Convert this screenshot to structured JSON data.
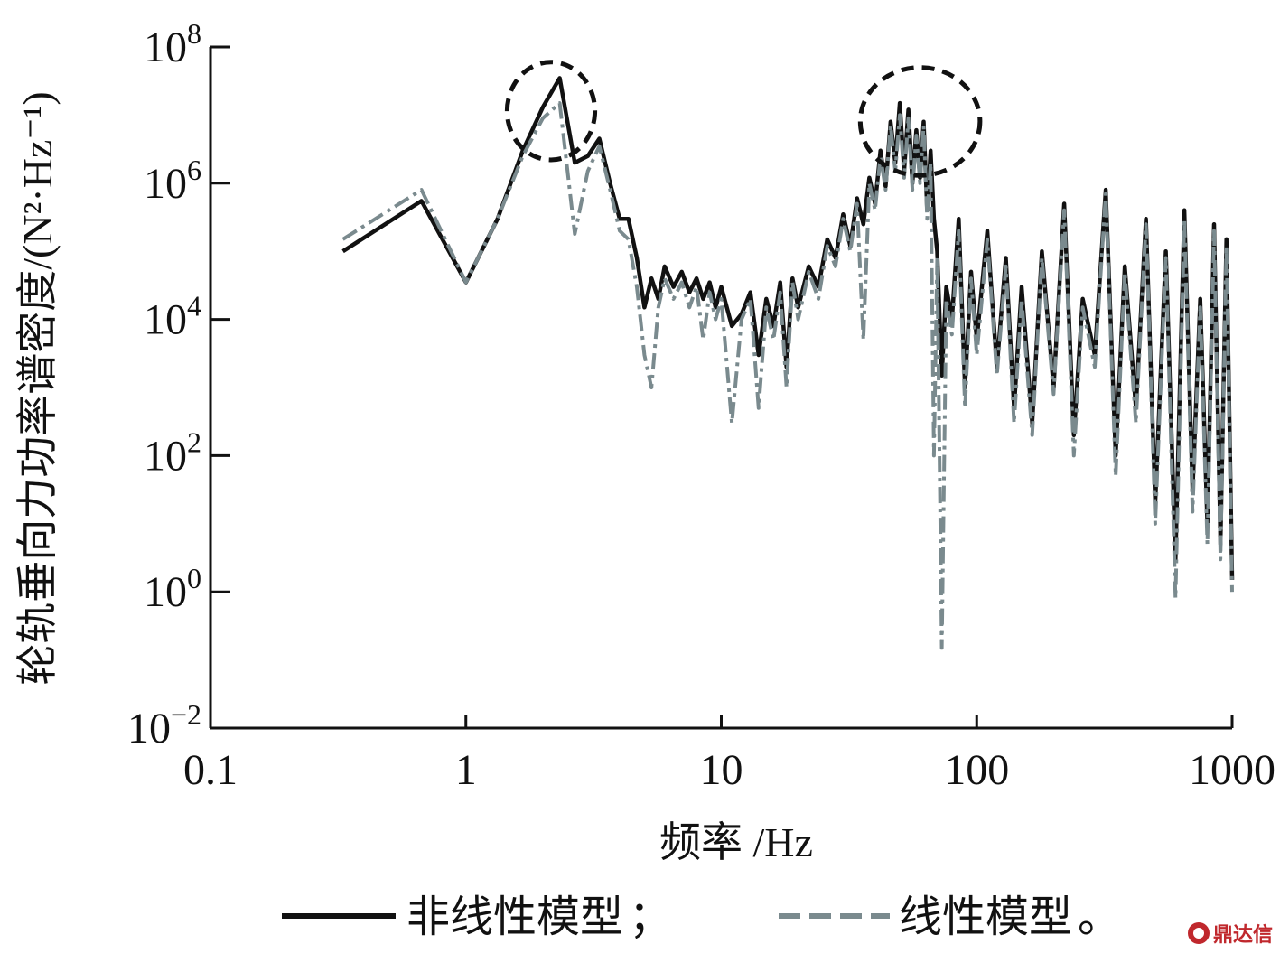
{
  "chart_data": {
    "type": "line",
    "xscale": "log",
    "yscale": "log",
    "xlim": [
      0.1,
      1000
    ],
    "ylim": [
      0.01,
      100000000
    ],
    "xlabel": "频率 /Hz",
    "ylabel": "轮轨垂向力功率谱密度/(N²·Hz⁻¹)",
    "x_ticks": [
      {
        "value": 0.1,
        "label": "0.1"
      },
      {
        "value": 1,
        "label": "1"
      },
      {
        "value": 10,
        "label": "10"
      },
      {
        "value": 100,
        "label": "100"
      },
      {
        "value": 1000,
        "label": "1000"
      }
    ],
    "y_ticks": [
      {
        "value": 0.01,
        "base": "10",
        "exp": "−2"
      },
      {
        "value": 1,
        "base": "10",
        "exp": "0"
      },
      {
        "value": 100,
        "base": "10",
        "exp": "2"
      },
      {
        "value": 10000,
        "base": "10",
        "exp": "4"
      },
      {
        "value": 1000000,
        "base": "10",
        "exp": "6"
      },
      {
        "value": 100000000,
        "base": "10",
        "exp": "8"
      }
    ],
    "annotations": [
      {
        "type": "dashed-ellipse",
        "x_center": 2.15,
        "y_center": 11000000,
        "x_range": [
          1.45,
          3.2
        ],
        "y_range": [
          2200000,
          60000000
        ]
      },
      {
        "type": "dashed-ellipse",
        "x_center": 58,
        "y_center": 6000000,
        "x_range": [
          35,
          103
        ],
        "y_range": [
          1300000,
          50000000
        ]
      }
    ],
    "series": [
      {
        "name": "非线性模型",
        "color": "#111111",
        "style": "solid",
        "x": [
          0.33,
          0.67,
          1.0,
          1.33,
          1.67,
          2.0,
          2.33,
          2.67,
          3.0,
          3.33,
          3.67,
          4.0,
          4.33,
          4.67,
          5.0,
          5.33,
          5.67,
          6.0,
          6.5,
          7.0,
          7.5,
          8.0,
          8.5,
          9.0,
          9.5,
          10.0,
          11.0,
          12.0,
          13.0,
          14.0,
          15.0,
          16.0,
          17.0,
          18.0,
          19.0,
          20.0,
          22.0,
          24.0,
          26.0,
          28.0,
          30.0,
          32.0,
          34.0,
          36.0,
          38.0,
          40.0,
          42.0,
          44.0,
          46.0,
          48.0,
          50.0,
          52.0,
          54.0,
          56.0,
          58.0,
          60.0,
          62.0,
          64.0,
          66.0,
          68.0,
          70.0,
          73.0,
          76.0,
          80.0,
          85.0,
          90.0,
          95.0,
          100.0,
          110.0,
          120.0,
          130.0,
          140.0,
          150.0,
          165.0,
          180.0,
          200.0,
          220.0,
          240.0,
          260.0,
          290.0,
          320.0,
          350.0,
          380.0,
          420.0,
          460.0,
          500.0,
          550.0,
          600.0,
          650.0,
          700.0,
          750.0,
          800.0,
          850.0,
          900.0,
          950.0,
          1000.0
        ],
        "y": [
          100000,
          550000,
          35000,
          300000,
          3000000,
          13000000,
          35000000,
          2000000,
          2500000,
          4500000,
          1000000,
          300000,
          300000,
          80000,
          15000,
          40000,
          20000,
          60000,
          30000,
          50000,
          25000,
          40000,
          20000,
          35000,
          15000,
          30000,
          8000,
          12000,
          25000,
          3000,
          20000,
          8000,
          35000,
          2000,
          40000,
          15000,
          60000,
          30000,
          150000,
          80000,
          350000,
          120000,
          600000,
          250000,
          1200000,
          500000,
          3000000,
          900000,
          8000000,
          2000000,
          15000000,
          1500000,
          12000000,
          1000000,
          6000000,
          1200000,
          8000000,
          400000,
          3000000,
          300000,
          100000,
          1500,
          30000,
          10000,
          300000,
          1000,
          50000,
          5000,
          200000,
          2000,
          80000,
          500,
          30000,
          300,
          100000,
          1000,
          500000,
          200,
          20000,
          3000,
          800000,
          100,
          60000,
          500,
          300000,
          20,
          100000,
          3,
          400000,
          30,
          20000,
          10,
          250000,
          5,
          150000,
          1.5
        ]
      },
      {
        "name": "线性模型",
        "color": "#7a8a8e",
        "style": "dashdot",
        "x": [
          0.33,
          0.67,
          1.0,
          1.33,
          1.67,
          2.0,
          2.33,
          2.67,
          3.0,
          3.33,
          3.67,
          4.0,
          4.33,
          4.67,
          5.0,
          5.33,
          5.67,
          6.0,
          6.5,
          7.0,
          7.5,
          8.0,
          8.5,
          9.0,
          9.5,
          10.0,
          11.0,
          12.0,
          13.0,
          14.0,
          15.0,
          16.0,
          17.0,
          18.0,
          19.0,
          20.0,
          22.0,
          24.0,
          26.0,
          28.0,
          30.0,
          32.0,
          34.0,
          36.0,
          38.0,
          40.0,
          42.0,
          44.0,
          46.0,
          48.0,
          50.0,
          52.0,
          54.0,
          56.0,
          58.0,
          60.0,
          62.0,
          64.0,
          66.0,
          68.0,
          70.0,
          73.0,
          76.0,
          80.0,
          85.0,
          90.0,
          95.0,
          100.0,
          110.0,
          120.0,
          130.0,
          140.0,
          150.0,
          165.0,
          180.0,
          200.0,
          220.0,
          240.0,
          260.0,
          290.0,
          320.0,
          350.0,
          380.0,
          420.0,
          460.0,
          500.0,
          550.0,
          600.0,
          650.0,
          700.0,
          750.0,
          800.0,
          850.0,
          900.0,
          950.0,
          1000.0
        ],
        "y": [
          150000,
          800000,
          35000,
          300000,
          2500000,
          9000000,
          15000000,
          180000,
          1500000,
          3500000,
          800000,
          200000,
          150000,
          30000,
          3000,
          1000,
          15000,
          40000,
          20000,
          35000,
          15000,
          30000,
          5000,
          25000,
          10000,
          20000,
          300,
          10000,
          20000,
          500,
          15000,
          5000,
          25000,
          1000,
          35000,
          10000,
          50000,
          20000,
          120000,
          60000,
          300000,
          100000,
          500000,
          5000,
          1000000,
          400000,
          2500000,
          800000,
          7000000,
          1500000,
          10000000,
          1200000,
          9000000,
          800000,
          5000000,
          1000000,
          7000000,
          300000,
          2000000,
          100,
          80000,
          0.15,
          20000,
          6000,
          200000,
          500,
          40000,
          3000,
          150000,
          1500,
          60000,
          300,
          20000,
          200,
          80000,
          800,
          400000,
          100,
          15000,
          2000,
          700000,
          50,
          50000,
          300,
          250000,
          10,
          80000,
          0.8,
          300000,
          15,
          15000,
          5,
          200000,
          3,
          120000,
          1
        ]
      }
    ]
  },
  "legend": {
    "separator": "；",
    "terminator": "。"
  },
  "watermark": "鼎达信"
}
